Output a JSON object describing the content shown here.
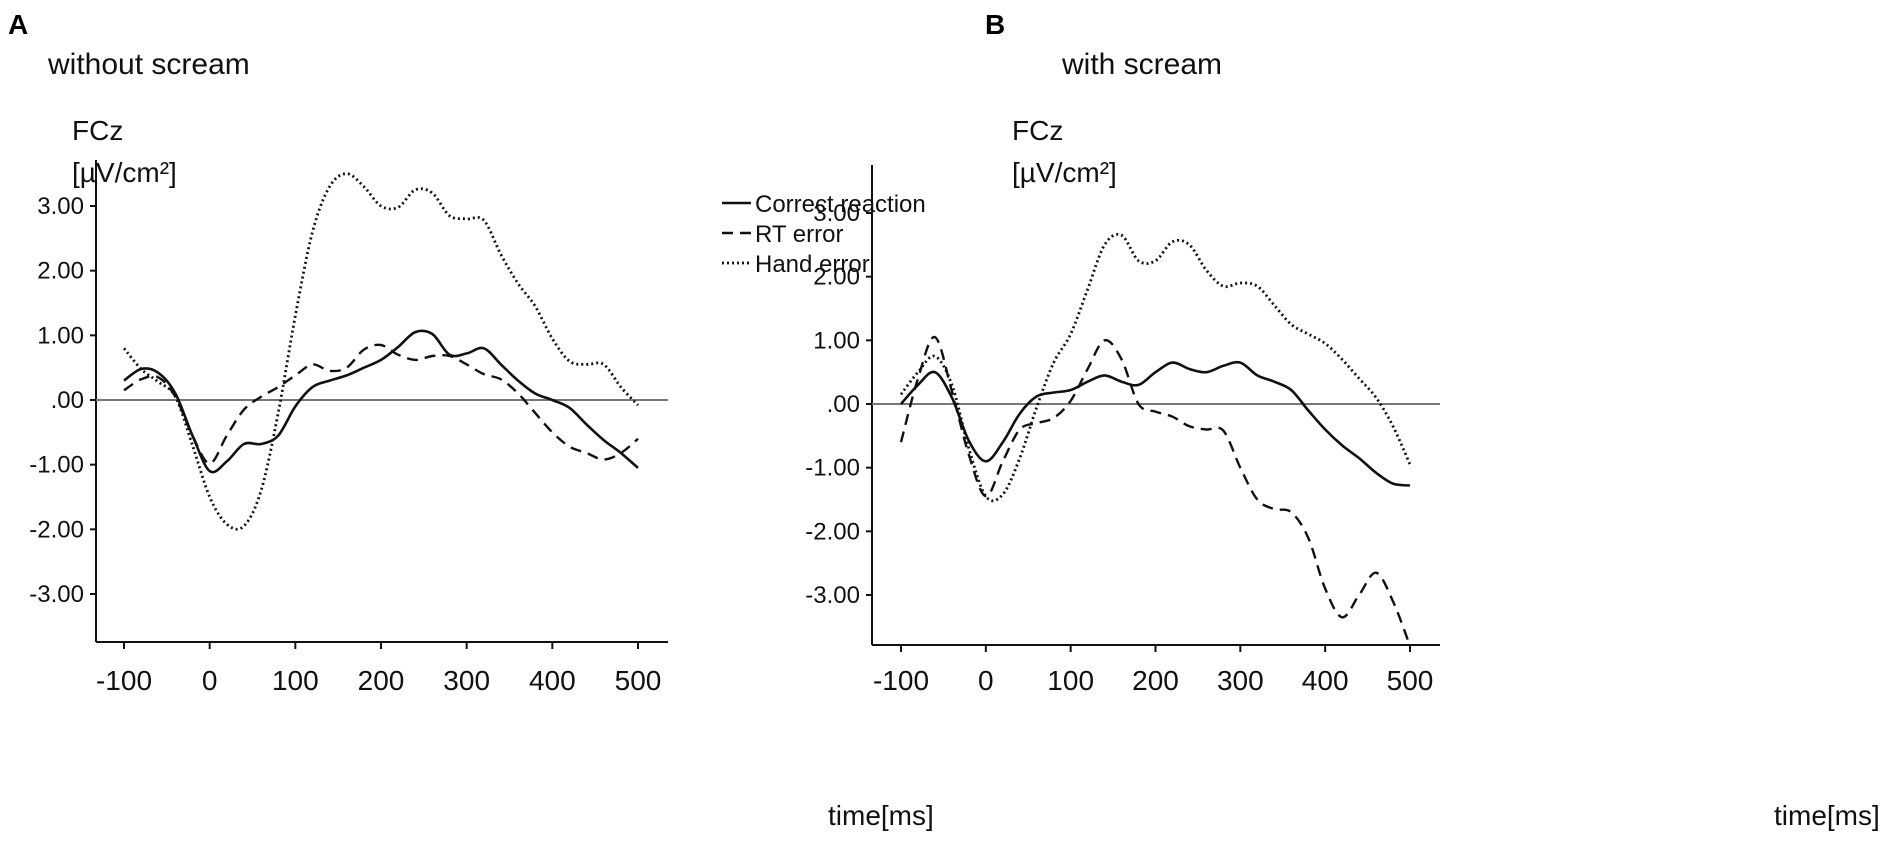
{
  "chart_data": [
    {
      "type": "line",
      "panel_label": "A",
      "title": "without scream",
      "ylabel_line1": "FCz",
      "ylabel_line2": "[µV/cm²]",
      "xlabel": "time[ms]",
      "xlim": [
        -100,
        500
      ],
      "ylim": [
        -3.7,
        3.7
      ],
      "yticks": [
        3,
        2,
        1,
        0,
        -1,
        -2,
        -3
      ],
      "ytick_labels": [
        "3.00",
        "2.00",
        "1.00",
        ".00",
        "-1.00",
        "-2.00",
        "-3.00"
      ],
      "xticks": [
        -100,
        0,
        100,
        200,
        300,
        400,
        500
      ],
      "xtick_labels": [
        "-100",
        "0",
        "100",
        "200",
        "300",
        "400",
        "500"
      ],
      "legend": [
        "Correct reaction",
        "RT error",
        "Hand error"
      ],
      "legend_position": "top-right",
      "series": [
        {
          "name": "Correct reaction",
          "style": "solid",
          "x": [
            -100,
            -80,
            -60,
            -40,
            -20,
            0,
            20,
            40,
            60,
            80,
            100,
            120,
            140,
            160,
            180,
            200,
            220,
            240,
            260,
            280,
            300,
            320,
            340,
            360,
            380,
            400,
            420,
            440,
            460,
            480,
            500
          ],
          "y": [
            0.3,
            0.48,
            0.42,
            0.1,
            -0.55,
            -1.1,
            -0.95,
            -0.68,
            -0.68,
            -0.55,
            -0.1,
            0.2,
            0.3,
            0.38,
            0.5,
            0.62,
            0.82,
            1.05,
            1.02,
            0.7,
            0.72,
            0.8,
            0.55,
            0.3,
            0.1,
            0.0,
            -0.12,
            -0.38,
            -0.62,
            -0.82,
            -1.05
          ]
        },
        {
          "name": "RT error",
          "style": "dashed",
          "x": [
            -100,
            -80,
            -60,
            -40,
            -20,
            0,
            20,
            40,
            60,
            80,
            100,
            120,
            140,
            160,
            180,
            200,
            220,
            240,
            260,
            280,
            300,
            320,
            340,
            360,
            380,
            400,
            420,
            440,
            460,
            480,
            500
          ],
          "y": [
            0.15,
            0.32,
            0.35,
            0.05,
            -0.55,
            -0.98,
            -0.55,
            -0.15,
            0.05,
            0.2,
            0.38,
            0.55,
            0.45,
            0.5,
            0.78,
            0.85,
            0.7,
            0.62,
            0.68,
            0.68,
            0.55,
            0.4,
            0.32,
            0.1,
            -0.2,
            -0.5,
            -0.72,
            -0.82,
            -0.92,
            -0.82,
            -0.6
          ]
        },
        {
          "name": "Hand error",
          "style": "dotted",
          "x": [
            -100,
            -80,
            -60,
            -40,
            -20,
            0,
            20,
            40,
            60,
            80,
            100,
            120,
            140,
            160,
            180,
            200,
            220,
            240,
            260,
            280,
            300,
            320,
            340,
            360,
            380,
            400,
            420,
            440,
            460,
            480,
            500
          ],
          "y": [
            0.8,
            0.48,
            0.28,
            0.05,
            -0.7,
            -1.5,
            -1.92,
            -1.95,
            -1.4,
            -0.2,
            1.3,
            2.6,
            3.3,
            3.5,
            3.3,
            3.0,
            2.98,
            3.25,
            3.2,
            2.85,
            2.8,
            2.78,
            2.25,
            1.8,
            1.45,
            0.95,
            0.6,
            0.55,
            0.55,
            0.2,
            -0.08
          ]
        }
      ]
    },
    {
      "type": "line",
      "panel_label": "B",
      "title": "with scream",
      "ylabel_line1": "FCz",
      "ylabel_line2": "[µV/cm²]",
      "xlabel": "time[ms]",
      "xlim": [
        -100,
        500
      ],
      "ylim": [
        -3.8,
        3.8
      ],
      "yticks": [
        3,
        2,
        1,
        0,
        -1,
        -2,
        -3
      ],
      "ytick_labels": [
        "3.00",
        "2.00",
        "1.00",
        ".00",
        "-1.00",
        "-2.00",
        "-3.00"
      ],
      "xticks": [
        -100,
        0,
        100,
        200,
        300,
        400,
        500
      ],
      "xtick_labels": [
        "-100",
        "0",
        "100",
        "200",
        "300",
        "400",
        "500"
      ],
      "series": [
        {
          "name": "Correct reaction",
          "style": "solid",
          "x": [
            -100,
            -80,
            -60,
            -40,
            -20,
            0,
            20,
            40,
            60,
            80,
            100,
            120,
            140,
            160,
            180,
            200,
            220,
            240,
            260,
            280,
            300,
            320,
            340,
            360,
            380,
            400,
            420,
            440,
            460,
            480,
            500
          ],
          "y": [
            0.0,
            0.3,
            0.5,
            0.1,
            -0.58,
            -0.9,
            -0.6,
            -0.15,
            0.12,
            0.18,
            0.22,
            0.35,
            0.45,
            0.35,
            0.3,
            0.5,
            0.65,
            0.55,
            0.5,
            0.6,
            0.65,
            0.45,
            0.35,
            0.22,
            -0.1,
            -0.4,
            -0.65,
            -0.85,
            -1.08,
            -1.25,
            -1.28
          ]
        },
        {
          "name": "RT error",
          "style": "dashed",
          "x": [
            -100,
            -80,
            -60,
            -40,
            -20,
            0,
            20,
            40,
            60,
            80,
            100,
            120,
            140,
            160,
            180,
            200,
            220,
            240,
            260,
            280,
            300,
            320,
            340,
            360,
            380,
            400,
            420,
            440,
            460,
            480,
            500
          ],
          "y": [
            -0.6,
            0.4,
            1.05,
            0.2,
            -0.8,
            -1.45,
            -0.9,
            -0.4,
            -0.3,
            -0.22,
            0.05,
            0.55,
            1.0,
            0.7,
            0.0,
            -0.12,
            -0.2,
            -0.35,
            -0.4,
            -0.42,
            -1.0,
            -1.5,
            -1.65,
            -1.7,
            -2.1,
            -2.9,
            -3.35,
            -3.0,
            -2.65,
            -3.1,
            -3.8
          ]
        },
        {
          "name": "Hand error",
          "style": "dotted",
          "x": [
            -100,
            -80,
            -60,
            -40,
            -20,
            0,
            20,
            40,
            60,
            80,
            100,
            120,
            140,
            160,
            180,
            200,
            220,
            240,
            260,
            280,
            300,
            320,
            340,
            360,
            380,
            400,
            420,
            440,
            460,
            480,
            500
          ],
          "y": [
            0.15,
            0.5,
            0.75,
            0.3,
            -0.7,
            -1.45,
            -1.42,
            -0.85,
            -0.05,
            0.65,
            1.1,
            1.8,
            2.5,
            2.65,
            2.25,
            2.25,
            2.55,
            2.5,
            2.1,
            1.85,
            1.9,
            1.85,
            1.55,
            1.25,
            1.1,
            0.95,
            0.7,
            0.4,
            0.1,
            -0.35,
            -0.95
          ]
        }
      ]
    }
  ]
}
